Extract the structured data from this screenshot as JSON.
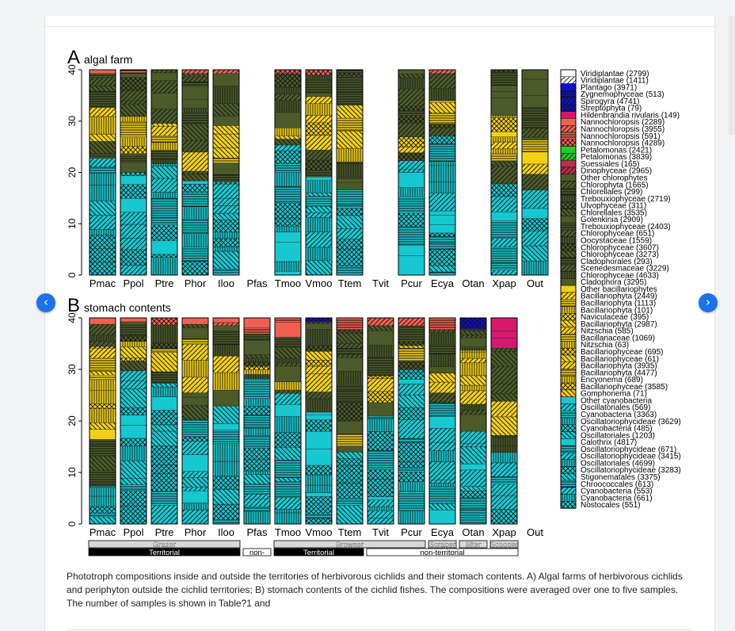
{
  "nav": {
    "prev_label": "‹",
    "next_label": "›"
  },
  "caption": "Phototroph compositions inside and outside the territories of herbivorous cichlids and their stomach contents. A) Algal farms of herbivorous cichlids and periphyton outside the cichlid territories; B) stomach contents of the cichlid fishes. The compositions were averaged over one to five samples. The number of samples is shown in Table?1 and",
  "chart_data": {
    "type": "bar",
    "stacked": true,
    "categories": [
      "Pmac",
      "Ppol",
      "Ptre",
      "Phor",
      "Iloo",
      "Pfas",
      "Tmoo",
      "Vmoo",
      "Ttem",
      "Tvit",
      "Pcur",
      "Ecya",
      "Otan",
      "Xpap",
      "Out"
    ],
    "ylim": [
      0,
      40
    ],
    "yticks": [
      0,
      10,
      20,
      30,
      40
    ],
    "panels": [
      {
        "letter": "A",
        "title": "algal farm",
        "totals": [
          40,
          40,
          40,
          40,
          40,
          0,
          40,
          40,
          40,
          0,
          40,
          40,
          0,
          40,
          40
        ]
      },
      {
        "letter": "B",
        "title": "stomach contents",
        "totals": [
          40,
          40,
          40,
          40,
          40,
          40,
          40,
          40,
          40,
          40,
          40,
          40,
          40,
          40,
          0
        ]
      }
    ],
    "groups_row1": [
      {
        "label": "Grazer",
        "from": 0,
        "to": 4
      },
      {
        "label": "Browser",
        "from": 6,
        "to": 10
      },
      {
        "label": "Scraper",
        "from": 11,
        "to": 11
      },
      {
        "label": "Biter",
        "from": 12,
        "to": 12
      },
      {
        "label": "Scooper",
        "from": 13,
        "to": 13
      }
    ],
    "groups_row2": [
      {
        "label": "Territorial",
        "from": 0,
        "to": 4,
        "dark": true
      },
      {
        "label": "non-",
        "from": 5,
        "to": 5,
        "dark": false
      },
      {
        "label": "Territorial",
        "from": 6,
        "to": 8,
        "dark": true
      },
      {
        "label": "non-territorial",
        "from": 9,
        "to": 13,
        "dark": false
      }
    ],
    "legend": [
      {
        "label": "Viridiplantae (2799)",
        "color": "#ffffff",
        "pattern": "solid"
      },
      {
        "label": "Viridiplantae (1411)",
        "color": "#ffffff",
        "pattern": "diag"
      },
      {
        "label": "Plantago (3971)",
        "color": "#1010c8",
        "pattern": "solid"
      },
      {
        "label": "Zygnemophyceae (513)",
        "color": "#1010c8",
        "pattern": "hatch"
      },
      {
        "label": "Spirogyra (4741)",
        "color": "#1010c8",
        "pattern": "diag"
      },
      {
        "label": "Streptophyta (79)",
        "color": "#1010c8",
        "pattern": "grid"
      },
      {
        "label": "Hildenbrandia rivularis (149)",
        "color": "#d6186e",
        "pattern": "solid"
      },
      {
        "label": "Nannochloropsis (2289)",
        "color": "#f06050",
        "pattern": "solid"
      },
      {
        "label": "Nannochloropsis (3955)",
        "color": "#f06050",
        "pattern": "diag"
      },
      {
        "label": "Nannochloropsis (591)",
        "color": "#f06050",
        "pattern": "hatch"
      },
      {
        "label": "Nannochloropsis (4289)",
        "color": "#f06050",
        "pattern": "grid"
      },
      {
        "label": "Petalomonas (2421)",
        "color": "#22cc22",
        "pattern": "solid"
      },
      {
        "label": "Petalomonas (3839)",
        "color": "#22cc22",
        "pattern": "diag"
      },
      {
        "label": "Suessiales (165)",
        "color": "#b83048",
        "pattern": "solid"
      },
      {
        "label": "Dinophyceae (2965)",
        "color": "#b83048",
        "pattern": "diag"
      },
      {
        "label": "Other chlorophytes",
        "color": "#4b5a28",
        "pattern": "solid"
      },
      {
        "label": "Chlorophyta (1665)",
        "color": "#4b5a28",
        "pattern": "diag"
      },
      {
        "label": "Chlorellales (299)",
        "color": "#4b5a28",
        "pattern": "hatch"
      },
      {
        "label": "Trebouxiophyceae (2719)",
        "color": "#4b5a28",
        "pattern": "vert"
      },
      {
        "label": "Ulvophyceae (311)",
        "color": "#4b5a28",
        "pattern": "grid"
      },
      {
        "label": "Chlorellales (3535)",
        "color": "#4b5a28",
        "pattern": "back"
      },
      {
        "label": "Golenkinia (2909)",
        "color": "#4b5a28",
        "pattern": "solid"
      },
      {
        "label": "Trebouxiophyceae (2403)",
        "color": "#4b5a28",
        "pattern": "hatch"
      },
      {
        "label": "Chlorophyceae (651)",
        "color": "#4b5a28",
        "pattern": "diag"
      },
      {
        "label": "Oocystaceae (1559)",
        "color": "#4b5a28",
        "pattern": "vert"
      },
      {
        "label": "Chlorophyceae (3607)",
        "color": "#4b5a28",
        "pattern": "grid"
      },
      {
        "label": "Chlorophyceae (3273)",
        "color": "#4b5a28",
        "pattern": "back"
      },
      {
        "label": "Cladophorales (293)",
        "color": "#4b5a28",
        "pattern": "hatch"
      },
      {
        "label": "Scenedesmaceae (3229)",
        "color": "#4b5a28",
        "pattern": "diag"
      },
      {
        "label": "Chlorophyceae (4633)",
        "color": "#4b5a28",
        "pattern": "vert"
      },
      {
        "label": "Cladophora (3295)",
        "color": "#4b5a28",
        "pattern": "solid"
      },
      {
        "label": "Other bacillariophytes",
        "color": "#f2d014",
        "pattern": "solid"
      },
      {
        "label": "Bacillariophyta (2449)",
        "color": "#f2d014",
        "pattern": "diag"
      },
      {
        "label": "Bacillariophyta (1113)",
        "color": "#f2d014",
        "pattern": "hatch"
      },
      {
        "label": "Bacillariophyta (101)",
        "color": "#f2d014",
        "pattern": "vert"
      },
      {
        "label": "Naviculaceae (395)",
        "color": "#f2d014",
        "pattern": "grid"
      },
      {
        "label": "Bacillariophyta (2987)",
        "color": "#f2d014",
        "pattern": "back"
      },
      {
        "label": "Nitzschia (585)",
        "color": "#f2d014",
        "pattern": "diag"
      },
      {
        "label": "Bacillariaceae (1069)",
        "color": "#f2d014",
        "pattern": "hatch"
      },
      {
        "label": "Nitzschia (63)",
        "color": "#f2d014",
        "pattern": "vert"
      },
      {
        "label": "Bacillariophyceae (695)",
        "color": "#f2d014",
        "pattern": "grid"
      },
      {
        "label": "Bacillariophyceae (61)",
        "color": "#f2d014",
        "pattern": "back"
      },
      {
        "label": "Bacillariophyta (3935)",
        "color": "#f2d014",
        "pattern": "diag"
      },
      {
        "label": "Bacillariophyta (4477)",
        "color": "#f2d014",
        "pattern": "hatch"
      },
      {
        "label": "Encyonema (689)",
        "color": "#f2d014",
        "pattern": "vert"
      },
      {
        "label": "Bacillariophyceae (3585)",
        "color": "#f2d014",
        "pattern": "grid"
      },
      {
        "label": "Gomphonema (71)",
        "color": "#f2d014",
        "pattern": "back"
      },
      {
        "label": "Other cyanobacteria",
        "color": "#16c8d0",
        "pattern": "solid"
      },
      {
        "label": "Oscillatoriales (569)",
        "color": "#16c8d0",
        "pattern": "diag"
      },
      {
        "label": "Cyanobacteria (3363)",
        "color": "#16c8d0",
        "pattern": "hatch"
      },
      {
        "label": "Oscillatoriophycideae (3629)",
        "color": "#16c8d0",
        "pattern": "vert"
      },
      {
        "label": "Cyanobacteria (485)",
        "color": "#16c8d0",
        "pattern": "grid"
      },
      {
        "label": "Oscillatoriales (1203)",
        "color": "#16c8d0",
        "pattern": "back"
      },
      {
        "label": "Calothrix (4817)",
        "color": "#16c8d0",
        "pattern": "solid"
      },
      {
        "label": "Oscillatoriophycideae (671)",
        "color": "#16c8d0",
        "pattern": "hatch"
      },
      {
        "label": "Oscillatoriophycideae (3415)",
        "color": "#16c8d0",
        "pattern": "diag"
      },
      {
        "label": "Oscillatoriales (4699)",
        "color": "#16c8d0",
        "pattern": "vert"
      },
      {
        "label": "Oscillatoriophycideae (3283)",
        "color": "#16c8d0",
        "pattern": "grid"
      },
      {
        "label": "Stigonematales (3375)",
        "color": "#16c8d0",
        "pattern": "back"
      },
      {
        "label": "Chroococcales (613)",
        "color": "#16c8d0",
        "pattern": "hatch"
      },
      {
        "label": "Cyanobacteria (553)",
        "color": "#16c8d0",
        "pattern": "diag"
      },
      {
        "label": "Cyanobacteria (661)",
        "color": "#16c8d0",
        "pattern": "vert"
      },
      {
        "label": "Nostocales (551)",
        "color": "#16c8d0",
        "pattern": "grid"
      }
    ]
  }
}
